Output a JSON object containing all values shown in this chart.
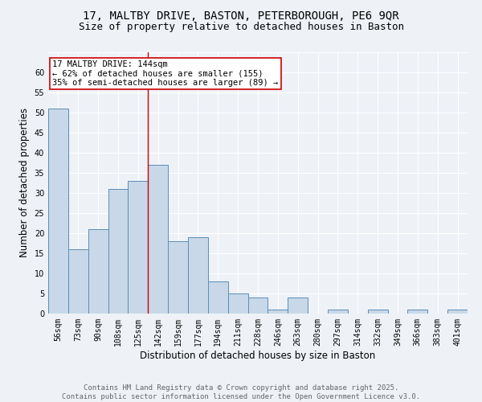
{
  "title_line1": "17, MALTBY DRIVE, BASTON, PETERBOROUGH, PE6 9QR",
  "title_line2": "Size of property relative to detached houses in Baston",
  "xlabel": "Distribution of detached houses by size in Baston",
  "ylabel": "Number of detached properties",
  "categories": [
    "56sqm",
    "73sqm",
    "90sqm",
    "108sqm",
    "125sqm",
    "142sqm",
    "159sqm",
    "177sqm",
    "194sqm",
    "211sqm",
    "228sqm",
    "246sqm",
    "263sqm",
    "280sqm",
    "297sqm",
    "314sqm",
    "332sqm",
    "349sqm",
    "366sqm",
    "383sqm",
    "401sqm"
  ],
  "values": [
    51,
    16,
    21,
    31,
    33,
    37,
    18,
    19,
    8,
    5,
    4,
    1,
    4,
    0,
    1,
    0,
    1,
    0,
    1,
    0,
    1
  ],
  "bar_color": "#c8d8e8",
  "bar_edge_color": "#5b8db8",
  "reference_line_color": "#cc0000",
  "annotation_text": "17 MALTBY DRIVE: 144sqm\n← 62% of detached houses are smaller (155)\n35% of semi-detached houses are larger (89) →",
  "annotation_box_color": "#ffffff",
  "annotation_box_edge_color": "#cc0000",
  "ylim": [
    0,
    65
  ],
  "yticks": [
    0,
    5,
    10,
    15,
    20,
    25,
    30,
    35,
    40,
    45,
    50,
    55,
    60,
    65
  ],
  "footer_line1": "Contains HM Land Registry data © Crown copyright and database right 2025.",
  "footer_line2": "Contains public sector information licensed under the Open Government Licence v3.0.",
  "background_color": "#eef2f7",
  "grid_color": "#ffffff",
  "title_fontsize": 10,
  "subtitle_fontsize": 9,
  "axis_label_fontsize": 8.5,
  "tick_fontsize": 7,
  "annotation_fontsize": 7.5,
  "footer_fontsize": 6.5,
  "ref_bar_index": 5
}
